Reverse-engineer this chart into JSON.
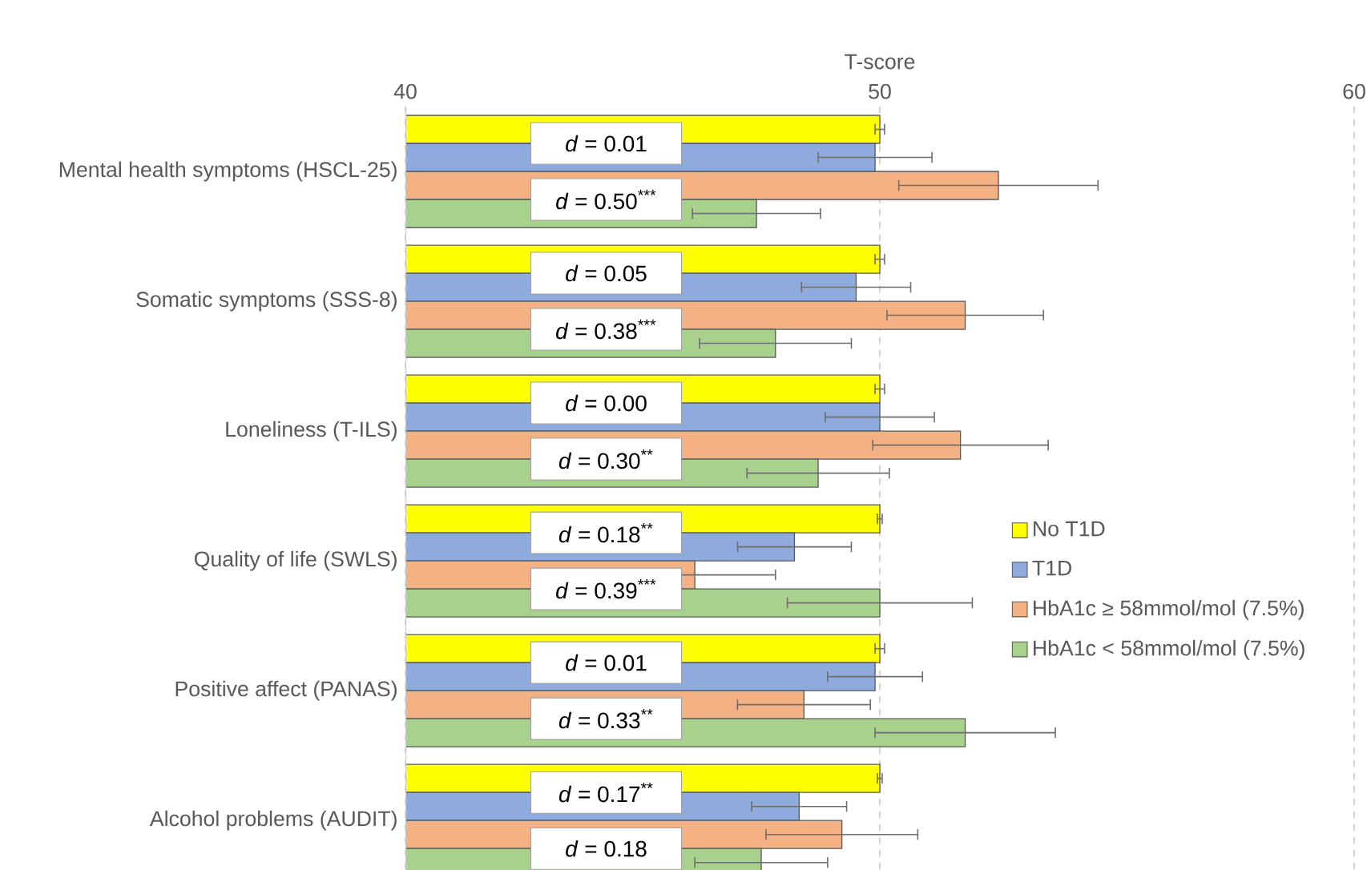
{
  "chart_data": {
    "type": "bar",
    "orientation": "horizontal",
    "xlabel": "T-score",
    "categories": [
      "Mental health symptoms (HSCL-25)",
      "Somatic symptoms (SSS-8)",
      "Loneliness (T-ILS)",
      "Quality of life (SWLS)",
      "Positive affect (PANAS)",
      "Alcohol problems (AUDIT)"
    ],
    "series": [
      {
        "name": "No T1D",
        "color": "#ffff00",
        "values": [
          50.0,
          50.0,
          50.0,
          50.0,
          50.0,
          50.0
        ],
        "errors": [
          0.1,
          0.1,
          0.1,
          0.05,
          0.1,
          0.05
        ]
      },
      {
        "name": "T1D",
        "color": "#8faadc",
        "values": [
          49.9,
          49.5,
          50.0,
          48.2,
          49.9,
          48.3
        ],
        "errors": [
          1.2,
          1.15,
          1.15,
          1.2,
          1.0,
          1.0
        ]
      },
      {
        "name": "HbA1c ≥ 58mmol/mol (7.5%)",
        "color": "#f4b183",
        "values": [
          52.5,
          51.8,
          51.7,
          46.1,
          48.4,
          49.2
        ],
        "errors": [
          2.1,
          1.65,
          1.85,
          1.7,
          1.4,
          1.6
        ]
      },
      {
        "name": "HbA1c < 58mmol/mol (7.5%)",
        "color": "#a9d18e",
        "values": [
          47.4,
          47.8,
          48.7,
          50.0,
          51.8,
          47.5
        ],
        "errors": [
          1.35,
          1.6,
          1.5,
          1.95,
          1.9,
          1.4
        ]
      }
    ],
    "xlim": [
      40,
      60
    ],
    "xticks": [
      40,
      50,
      60
    ],
    "grid": "x",
    "legend": "right",
    "annotations": [
      "*d* = 0.01",
      "*d* = 0.50$^{***}$",
      "*d* = 0.05",
      "*d* = 0.38$^{***}$",
      "*d* = 0.00",
      "*d* = 0.30$^{**}$",
      "*d* = 0.18$^{**}$",
      "*d* = 0.39$^{***}$",
      "*d* = 0.01",
      "*d* = 0.33$^{**}$",
      "*d* = 0.17$^{**}$",
      "*d* = 0.18"
    ]
  }
}
